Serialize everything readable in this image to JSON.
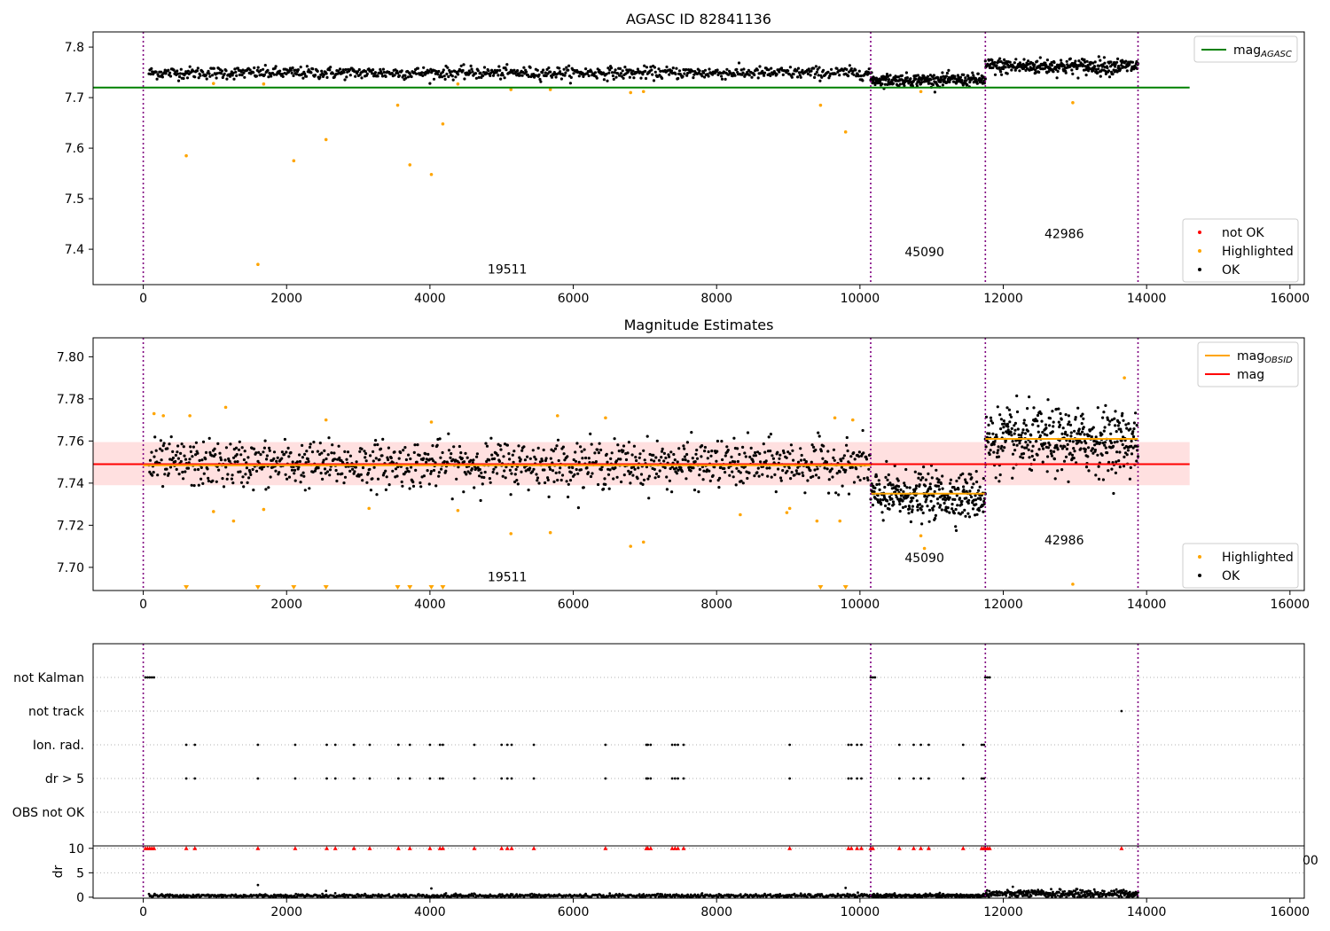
{
  "chart_data": [
    {
      "id": "p1",
      "type": "scatter",
      "title": "AGASC ID 82841136",
      "xlim": [
        -700,
        16200
      ],
      "ylim": [
        7.33,
        7.83
      ],
      "xticks": [
        0,
        2000,
        4000,
        6000,
        8000,
        10000,
        12000,
        14000,
        16000
      ],
      "yticks": [
        7.4,
        7.5,
        7.6,
        7.7,
        7.8
      ],
      "ytick_decimals": 1,
      "obsid_boundaries": [
        0,
        10150,
        11750,
        13880
      ],
      "obsid_labels": [
        {
          "text": "19511",
          "x": 5080,
          "y": 7.352
        },
        {
          "text": "45090",
          "x": 10900,
          "y": 7.386
        },
        {
          "text": "42986",
          "x": 12850,
          "y": 7.422
        }
      ],
      "hlines": [
        {
          "name": "mag_AGASC",
          "y": 7.72,
          "x": [
            -700,
            14600
          ],
          "color": "#008000"
        }
      ],
      "segments": [
        {
          "x": [
            80,
            10150
          ],
          "mean": 7.749,
          "sd": 0.006,
          "color": "#000000"
        },
        {
          "x": [
            10150,
            11750
          ],
          "mean": 7.735,
          "sd": 0.006,
          "color": "#000000"
        },
        {
          "x": [
            11750,
            13880
          ],
          "mean": 7.762,
          "sd": 0.008,
          "color": "#000000"
        }
      ],
      "highlighted_points": [
        [
          600,
          7.585
        ],
        [
          1600,
          7.37
        ],
        [
          2100,
          7.575
        ],
        [
          2550,
          7.617
        ],
        [
          3550,
          7.685
        ],
        [
          3720,
          7.567
        ],
        [
          4020,
          7.548
        ],
        [
          4180,
          7.648
        ],
        [
          9450,
          7.685
        ],
        [
          9800,
          7.632
        ],
        [
          12970,
          7.69
        ],
        [
          6800,
          7.71
        ],
        [
          6980,
          7.712
        ],
        [
          5130,
          7.716
        ],
        [
          5680,
          7.716
        ],
        [
          10850,
          7.712
        ],
        [
          980,
          7.728
        ],
        [
          1680,
          7.727
        ],
        [
          4390,
          7.727
        ]
      ],
      "legends": [
        {
          "position": "top-right",
          "entries": [
            {
              "label": "mag_AGASC",
              "style": "line",
              "color": "#008000"
            }
          ]
        },
        {
          "position": "bottom-right",
          "entries": [
            {
              "label": "not OK",
              "style": "dot",
              "color": "#ff0000"
            },
            {
              "label": "Highlighted",
              "style": "dot",
              "color": "#ffa500"
            },
            {
              "label": "OK",
              "style": "dot",
              "color": "#000000"
            }
          ]
        }
      ]
    },
    {
      "id": "p2",
      "type": "scatter",
      "title": "Magnitude Estimates",
      "xlim": [
        -700,
        16200
      ],
      "ylim": [
        7.689,
        7.809
      ],
      "xticks": [
        0,
        2000,
        4000,
        6000,
        8000,
        10000,
        12000,
        14000,
        16000
      ],
      "yticks": [
        7.7,
        7.72,
        7.74,
        7.76,
        7.78,
        7.8
      ],
      "ytick_decimals": 2,
      "obsid_boundaries": [
        0,
        10150,
        11750,
        13880
      ],
      "obsid_labels": [
        {
          "text": "19511",
          "x": 5080,
          "y": 7.6935
        },
        {
          "text": "45090",
          "x": 10900,
          "y": 7.7025
        },
        {
          "text": "42986",
          "x": 12850,
          "y": 7.711
        }
      ],
      "band": {
        "y": [
          7.739,
          7.7595
        ],
        "x": [
          -700,
          14600
        ],
        "color": "#ff0000",
        "alpha": 0.12
      },
      "hlines": [
        {
          "name": "mag",
          "y": 7.749,
          "x": [
            -700,
            14600
          ],
          "color": "#ff0000"
        },
        {
          "name": "mag_OBSID",
          "y": 7.7485,
          "x": [
            0,
            10150
          ],
          "color": "#ffa500"
        },
        {
          "name": "mag_OBSID",
          "y": 7.735,
          "x": [
            10150,
            11750
          ],
          "color": "#ffa500"
        },
        {
          "name": "mag_OBSID",
          "y": 7.761,
          "x": [
            11750,
            13880
          ],
          "color": "#ffa500"
        }
      ],
      "segments": [
        {
          "x": [
            80,
            10150
          ],
          "mean": 7.749,
          "sd": 0.0055,
          "color": "#000000"
        },
        {
          "x": [
            10150,
            11750
          ],
          "mean": 7.734,
          "sd": 0.0055,
          "color": "#000000"
        },
        {
          "x": [
            11750,
            13880
          ],
          "mean": 7.76,
          "sd": 0.0075,
          "color": "#000000"
        }
      ],
      "highlighted_points": [
        [
          150,
          7.773
        ],
        [
          280,
          7.772
        ],
        [
          650,
          7.772
        ],
        [
          1150,
          7.776
        ],
        [
          2550,
          7.77
        ],
        [
          4020,
          7.769
        ],
        [
          5780,
          7.772
        ],
        [
          6450,
          7.771
        ],
        [
          9650,
          7.771
        ],
        [
          9900,
          7.77
        ],
        [
          13690,
          7.79
        ],
        [
          980,
          7.7265
        ],
        [
          1260,
          7.722
        ],
        [
          1680,
          7.7275
        ],
        [
          3150,
          7.728
        ],
        [
          4390,
          7.727
        ],
        [
          5130,
          7.716
        ],
        [
          5680,
          7.7165
        ],
        [
          6800,
          7.71
        ],
        [
          6980,
          7.712
        ],
        [
          8330,
          7.725
        ],
        [
          8980,
          7.726
        ],
        [
          9020,
          7.728
        ],
        [
          9400,
          7.722
        ],
        [
          9720,
          7.722
        ],
        [
          10850,
          7.715
        ],
        [
          10900,
          7.709
        ],
        [
          12970,
          7.692
        ]
      ],
      "below_range_markers": [
        600,
        1600,
        2100,
        2550,
        3550,
        3720,
        4020,
        4180,
        9450,
        9800
      ],
      "legends": [
        {
          "position": "top-right",
          "entries": [
            {
              "label": "mag_OBSID",
              "style": "line",
              "color": "#ffa500"
            },
            {
              "label": "mag",
              "style": "line",
              "color": "#ff0000"
            }
          ]
        },
        {
          "position": "bottom-right",
          "entries": [
            {
              "label": "Highlighted",
              "style": "dot",
              "color": "#ffa500"
            },
            {
              "label": "OK",
              "style": "dot",
              "color": "#000000"
            }
          ]
        }
      ]
    },
    {
      "id": "p3",
      "type": "scatter",
      "title": "",
      "xlim": [
        -700,
        16200
      ],
      "categories": [
        "not Kalman",
        "not track",
        "Ion. rad.",
        "dr > 5",
        "OBS not OK"
      ],
      "obsid_boundaries": [
        0,
        10150,
        11750,
        13880
      ],
      "flags": {
        "not Kalman": [
          30,
          60,
          90,
          120,
          150,
          10150,
          10180,
          10210,
          11750,
          11780,
          11810
        ],
        "not track": [
          13650
        ],
        "Ion. rad.": [
          600,
          720,
          1600,
          2120,
          2560,
          2680,
          2940,
          3160,
          3560,
          3720,
          4000,
          4140,
          4180,
          4620,
          5000,
          5080,
          5140,
          5450,
          6450,
          7020,
          7040,
          7080,
          7380,
          7420,
          7460,
          7540,
          9020,
          9840,
          9880,
          9960,
          10020,
          10550,
          10750,
          10850,
          10960,
          11440,
          11700,
          11730
        ],
        "dr > 5": [
          600,
          720,
          1600,
          2120,
          2560,
          2680,
          2940,
          3160,
          3560,
          3720,
          4000,
          4140,
          4180,
          4620,
          5000,
          5080,
          5140,
          5450,
          6450,
          7020,
          7040,
          7080,
          7380,
          7420,
          7460,
          7540,
          9020,
          9840,
          9880,
          9960,
          10020,
          10550,
          10750,
          10850,
          10960,
          11440,
          11700,
          11730
        ],
        "OBS not OK": []
      }
    },
    {
      "id": "p4",
      "type": "scatter",
      "title": "",
      "ylabel": "dr",
      "xlim": [
        -700,
        16200
      ],
      "ylim": [
        -0.2,
        10.5
      ],
      "xticks": [
        0,
        2000,
        4000,
        6000,
        8000,
        10000,
        12000,
        14000,
        16000
      ],
      "yticks": [
        0,
        5,
        10
      ],
      "ytick_decimals": 0,
      "obsid_boundaries": [
        0,
        10150,
        11750,
        13880
      ],
      "segments": [
        {
          "x": [
            80,
            10150
          ],
          "mean": 0.3,
          "sd": 0.18,
          "color": "#000000"
        },
        {
          "x": [
            10150,
            11750
          ],
          "mean": 0.3,
          "sd": 0.18,
          "color": "#000000"
        },
        {
          "x": [
            11750,
            13880
          ],
          "mean": 0.7,
          "sd": 0.4,
          "color": "#000000"
        }
      ],
      "outlier_points": [
        [
          1600,
          2.5
        ],
        [
          4020,
          1.8
        ],
        [
          9800,
          1.9
        ],
        [
          2550,
          1.3
        ]
      ],
      "capped_markers_at": 10,
      "capped_markers": [
        30,
        60,
        90,
        120,
        150,
        600,
        720,
        1600,
        2120,
        2560,
        2680,
        2940,
        3160,
        3560,
        3720,
        4000,
        4140,
        4180,
        4620,
        5000,
        5080,
        5140,
        5450,
        6450,
        7020,
        7040,
        7080,
        7380,
        7420,
        7460,
        7540,
        9020,
        9840,
        9880,
        9960,
        10020,
        10150,
        10180,
        10550,
        10750,
        10850,
        10960,
        11440,
        11700,
        11730,
        11750,
        11780,
        11810,
        13650
      ],
      "stray_tick_label": "00"
    }
  ]
}
